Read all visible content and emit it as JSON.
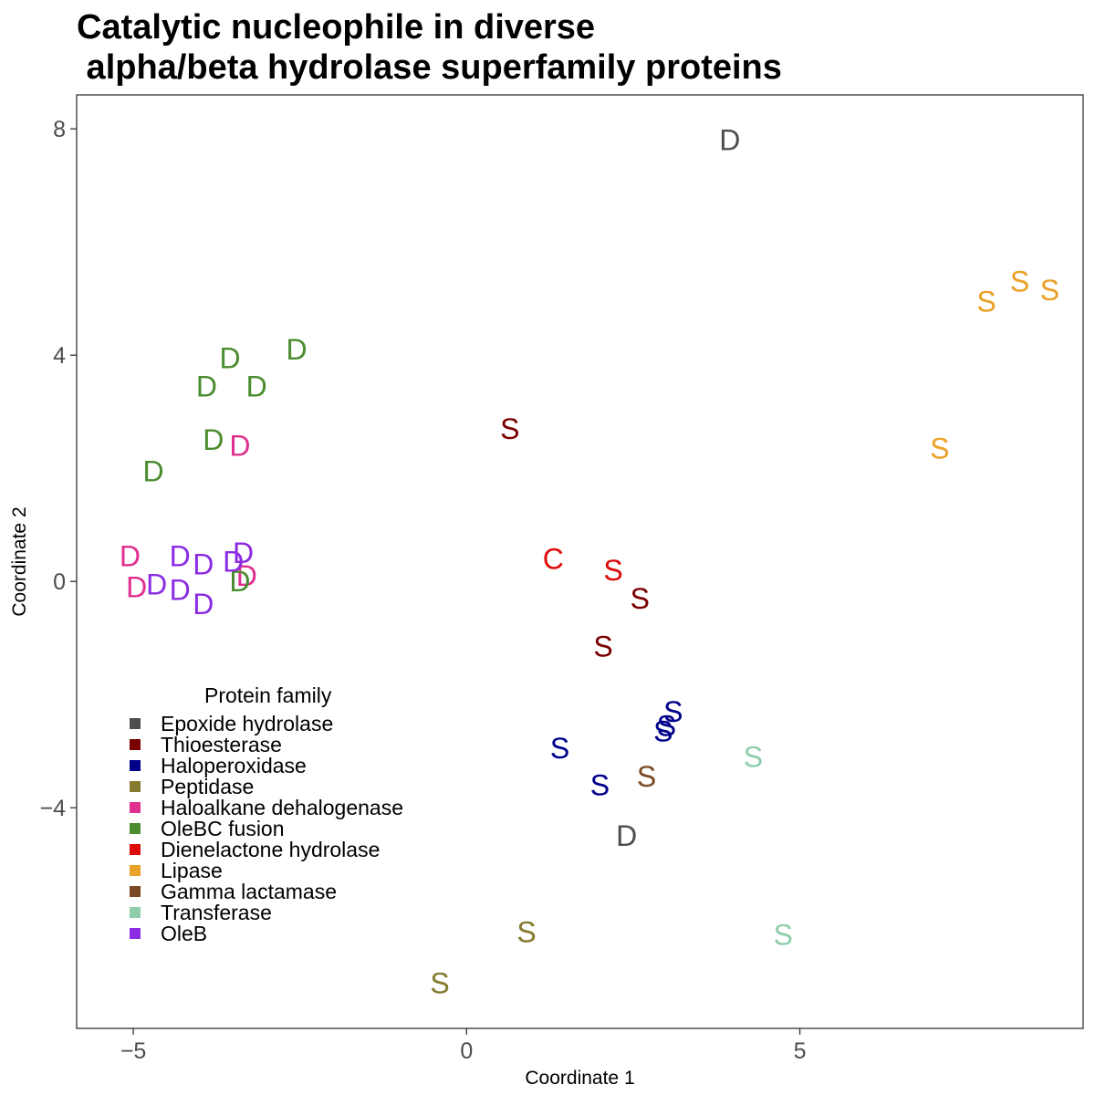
{
  "chart_data": {
    "type": "scatter",
    "title_lines": [
      "Catalytic nucleophile in diverse",
      " alpha/beta hydrolase superfamily proteins"
    ],
    "xlabel": "Coordinate 1",
    "ylabel": "Coordinate 2",
    "xlim": [
      -5.85,
      9.25
    ],
    "ylim": [
      -7.9,
      8.6
    ],
    "x_ticks": [
      -5,
      0,
      5
    ],
    "x_tick_labels": [
      "−5",
      "0",
      "5"
    ],
    "y_ticks": [
      8,
      4,
      0,
      -4
    ],
    "y_tick_labels": [
      "8",
      "4",
      "0",
      "−4"
    ],
    "grid": false,
    "legend": {
      "title": "Protein family",
      "placement": "bottom-left inside"
    },
    "series": [
      {
        "name": "Epoxide hydrolase",
        "color": "#4d4d4d",
        "points": [
          {
            "x": 3.95,
            "y": 7.8,
            "label": "D"
          },
          {
            "x": 2.4,
            "y": -4.5,
            "label": "D"
          }
        ]
      },
      {
        "name": "Thioesterase",
        "color": "#7a0000",
        "points": [
          {
            "x": 0.65,
            "y": 2.7,
            "label": "S"
          },
          {
            "x": 2.6,
            "y": -0.3,
            "label": "S"
          },
          {
            "x": 2.05,
            "y": -1.15,
            "label": "S"
          }
        ]
      },
      {
        "name": "Haloperoxidase",
        "color": "#00008b",
        "points": [
          {
            "x": 3.1,
            "y": -2.3,
            "label": "S"
          },
          {
            "x": 3.0,
            "y": -2.55,
            "label": "S"
          },
          {
            "x": 2.95,
            "y": -2.65,
            "label": "S"
          },
          {
            "x": 1.4,
            "y": -2.95,
            "label": "S"
          },
          {
            "x": 2.0,
            "y": -3.6,
            "label": "S"
          }
        ]
      },
      {
        "name": "Peptidase",
        "color": "#857a2e",
        "points": [
          {
            "x": 0.9,
            "y": -6.2,
            "label": "S"
          },
          {
            "x": -0.4,
            "y": -7.1,
            "label": "S"
          }
        ]
      },
      {
        "name": "Haloalkane dehalogenase",
        "color": "#e02f8f",
        "points": [
          {
            "x": -3.4,
            "y": 2.4,
            "label": "D"
          },
          {
            "x": -5.05,
            "y": 0.45,
            "label": "D"
          },
          {
            "x": -4.95,
            "y": -0.1,
            "label": "D"
          },
          {
            "x": -3.3,
            "y": 0.1,
            "label": "D"
          }
        ]
      },
      {
        "name": "OleBC fusion",
        "color": "#4a8c2f",
        "points": [
          {
            "x": -2.55,
            "y": 4.1,
            "label": "D"
          },
          {
            "x": -3.55,
            "y": 3.95,
            "label": "D"
          },
          {
            "x": -3.9,
            "y": 3.45,
            "label": "D"
          },
          {
            "x": -3.15,
            "y": 3.45,
            "label": "D"
          },
          {
            "x": -3.8,
            "y": 2.5,
            "label": "D"
          },
          {
            "x": -4.7,
            "y": 1.95,
            "label": "D"
          },
          {
            "x": -3.4,
            "y": 0.0,
            "label": "D"
          }
        ]
      },
      {
        "name": "Dienelactone hydrolase",
        "color": "#dd0a0a",
        "points": [
          {
            "x": 1.3,
            "y": 0.4,
            "label": "C"
          },
          {
            "x": 2.2,
            "y": 0.2,
            "label": "S"
          }
        ]
      },
      {
        "name": "Lipase",
        "color": "#eaa127",
        "points": [
          {
            "x": 8.3,
            "y": 5.3,
            "label": "S"
          },
          {
            "x": 8.75,
            "y": 5.15,
            "label": "S"
          },
          {
            "x": 7.8,
            "y": 4.95,
            "label": "S"
          },
          {
            "x": 7.1,
            "y": 2.35,
            "label": "S"
          }
        ]
      },
      {
        "name": "Gamma lactamase",
        "color": "#7a4a26",
        "points": [
          {
            "x": 2.7,
            "y": -3.45,
            "label": "S"
          }
        ]
      },
      {
        "name": "Transferase",
        "color": "#8fceaa",
        "points": [
          {
            "x": 4.3,
            "y": -3.1,
            "label": "S"
          },
          {
            "x": 4.75,
            "y": -6.25,
            "label": "S"
          }
        ]
      },
      {
        "name": "OleB",
        "color": "#8b2be2",
        "points": [
          {
            "x": -4.3,
            "y": 0.45,
            "label": "D"
          },
          {
            "x": -3.95,
            "y": 0.3,
            "label": "D"
          },
          {
            "x": -4.65,
            "y": -0.05,
            "label": "D"
          },
          {
            "x": -4.3,
            "y": -0.15,
            "label": "D"
          },
          {
            "x": -3.95,
            "y": -0.4,
            "label": "D"
          },
          {
            "x": -3.35,
            "y": 0.5,
            "label": "D"
          },
          {
            "x": -3.5,
            "y": 0.35,
            "label": "D"
          }
        ]
      }
    ]
  }
}
